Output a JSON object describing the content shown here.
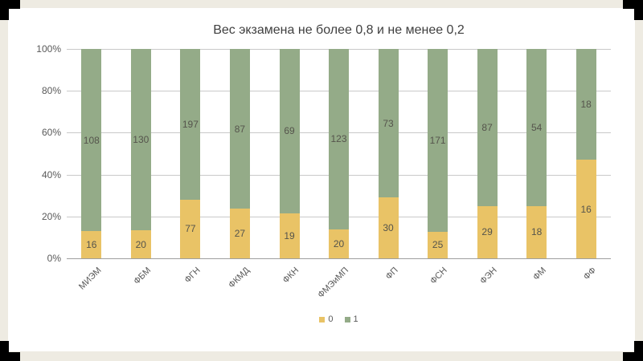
{
  "slide": {
    "background_color": "#eeebe2",
    "panel_color": "#ffffff",
    "bracket_color": "#000000"
  },
  "chart_data": {
    "type": "bar",
    "variant": "100%-stacked-column",
    "title": "Вес экзамена не более 0,8 и не менее 0,2",
    "categories": [
      "МИЭМ",
      "ФБМ",
      "ФГН",
      "ФКМД",
      "ФКН",
      "ФМЭиМП",
      "ФП",
      "ФСН",
      "ФЭН",
      "ФМ",
      "ФФ"
    ],
    "series": [
      {
        "name": "0",
        "color": "#e9c366",
        "values": [
          16,
          20,
          77,
          27,
          19,
          20,
          30,
          25,
          29,
          18,
          16
        ]
      },
      {
        "name": "1",
        "color": "#94ab88",
        "values": [
          108,
          130,
          197,
          87,
          69,
          123,
          73,
          171,
          87,
          54,
          18
        ]
      }
    ],
    "y_ticks": [
      "100%",
      "80%",
      "60%",
      "40%",
      "20%",
      "0%"
    ],
    "ylim": [
      0,
      100
    ],
    "grid": true,
    "gridline_color": "#c9c9c9",
    "axis_line_color": "#9f9f9f",
    "legend_position": "bottom"
  }
}
